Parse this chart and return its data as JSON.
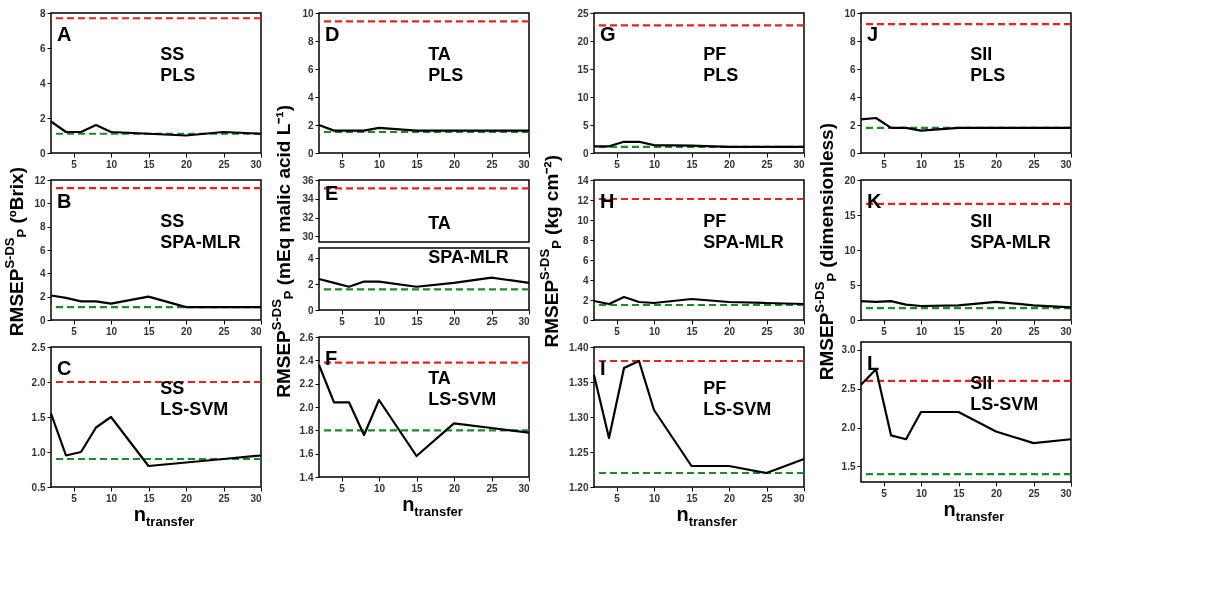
{
  "chart_data": [
    {
      "type": "line",
      "annotations": [
        "A",
        "SS",
        "PLS"
      ],
      "x": [
        2,
        4,
        6,
        8,
        10,
        15,
        20,
        25,
        30
      ],
      "series": [
        {
          "color": "#000000",
          "values": [
            1.8,
            1.2,
            1.2,
            1.6,
            1.2,
            1.1,
            1.0,
            1.2,
            1.1
          ]
        }
      ],
      "xlim": [
        2,
        30
      ],
      "xticks": [
        5,
        10,
        15,
        20,
        25,
        30
      ],
      "ylim": [
        0,
        8
      ],
      "yticks": [
        0,
        2,
        4,
        6,
        8
      ],
      "line_style": "solid",
      "ref_lines": [
        {
          "axis": "y",
          "value": 7.7,
          "color": "#e8231e",
          "line_style": "dashed"
        },
        {
          "axis": "y",
          "value": 1.1,
          "color": "#1a8a2a",
          "line_style": "dashed"
        }
      ]
    },
    {
      "type": "line",
      "annotations": [
        "B",
        "SS",
        "SPA-MLR"
      ],
      "ylabel": "RMSEP$^{S-DS}$$_{P}$ (ºBrix)",
      "x": [
        2,
        4,
        6,
        8,
        10,
        15,
        20,
        25,
        30
      ],
      "series": [
        {
          "color": "#000000",
          "values": [
            2.1,
            1.9,
            1.6,
            1.6,
            1.4,
            2.0,
            1.1,
            1.1,
            1.1
          ]
        }
      ],
      "xlim": [
        2,
        30
      ],
      "xticks": [
        5,
        10,
        15,
        20,
        25,
        30
      ],
      "ylim": [
        0,
        12
      ],
      "yticks": [
        0,
        2,
        4,
        6,
        8,
        10,
        12
      ],
      "line_style": "solid",
      "ref_lines": [
        {
          "axis": "y",
          "value": 11.3,
          "color": "#e8231e",
          "line_style": "dashed"
        },
        {
          "axis": "y",
          "value": 1.1,
          "color": "#1a8a2a",
          "line_style": "dashed"
        }
      ]
    },
    {
      "type": "line",
      "annotations": [
        "C",
        "SS",
        "LS-SVM"
      ],
      "xlabel": "n$_{transfer}$",
      "x": [
        2,
        4,
        6,
        8,
        10,
        15,
        20,
        25,
        30
      ],
      "series": [
        {
          "color": "#000000",
          "values": [
            1.55,
            0.95,
            1.0,
            1.35,
            1.5,
            0.8,
            0.85,
            0.9,
            0.95
          ]
        }
      ],
      "xlim": [
        2,
        30
      ],
      "xticks": [
        5,
        10,
        15,
        20,
        25,
        30
      ],
      "ylim": [
        0.5,
        2.5
      ],
      "yticks": [
        0.5,
        {
          "value": 1,
          "label": "1.0"
        },
        1.5,
        {
          "value": 2,
          "label": "2.0"
        },
        2.5
      ],
      "line_style": "solid",
      "ref_lines": [
        {
          "axis": "y",
          "value": 2.0,
          "color": "#e8231e",
          "line_style": "dashed"
        },
        {
          "axis": "y",
          "value": 0.9,
          "color": "#1a8a2a",
          "line_style": "dashed"
        }
      ]
    },
    {
      "type": "line",
      "annotations": [
        "D",
        "TA",
        "PLS"
      ],
      "x": [
        2,
        4,
        6,
        8,
        10,
        15,
        20,
        25,
        30
      ],
      "series": [
        {
          "color": "#000000",
          "values": [
            2.0,
            1.6,
            1.6,
            1.6,
            1.8,
            1.6,
            1.6,
            1.6,
            1.6
          ]
        }
      ],
      "xlim": [
        2,
        30
      ],
      "xticks": [
        5,
        10,
        15,
        20,
        25,
        30
      ],
      "ylim": [
        0,
        10
      ],
      "yticks": [
        0,
        2,
        4,
        6,
        8,
        10
      ],
      "line_style": "solid",
      "ref_lines": [
        {
          "axis": "y",
          "value": 9.4,
          "color": "#e8231e",
          "line_style": "dashed"
        },
        {
          "axis": "y",
          "value": 1.5,
          "color": "#1a8a2a",
          "line_style": "dashed"
        }
      ]
    },
    {
      "type": "line",
      "annotations": [
        "E",
        "TA"
      ],
      "xlim": [
        2,
        30
      ],
      "ylim": [
        29.4,
        36
      ],
      "yticks": [
        30,
        32,
        34,
        36
      ],
      "tick_labels": "y",
      "ref_lines": [
        {
          "axis": "y",
          "value": 35.1,
          "color": "#e8231e",
          "line_style": "dashed"
        }
      ]
    },
    {
      "type": "line",
      "annotations": [
        "SPA-MLR"
      ],
      "ylabel": "RMSEP$^{S-DS}$$_{P}$ (mEq malic acid L⁻¹)",
      "x": [
        2,
        4,
        6,
        8,
        10,
        15,
        20,
        25,
        30
      ],
      "series": [
        {
          "color": "#000000",
          "values": [
            2.4,
            2.1,
            1.8,
            2.2,
            2.2,
            1.8,
            2.1,
            2.5,
            2.1
          ]
        }
      ],
      "xlim": [
        2,
        30
      ],
      "xticks": [
        5,
        10,
        15,
        20,
        25,
        30
      ],
      "ylim": [
        0,
        4.8
      ],
      "yticks": [
        0,
        2,
        4
      ],
      "line_style": "solid",
      "ref_lines": [
        {
          "axis": "y",
          "value": 1.6,
          "color": "#1a8a2a",
          "line_style": "dashed"
        }
      ]
    },
    {
      "type": "line",
      "annotations": [
        "F",
        "TA",
        "LS-SVM"
      ],
      "xlabel": "n$_{transfer}$",
      "x": [
        2,
        4,
        6,
        8,
        10,
        15,
        20,
        25,
        30
      ],
      "series": [
        {
          "color": "#000000",
          "values": [
            2.36,
            2.04,
            2.04,
            1.76,
            2.06,
            1.58,
            1.86,
            1.82,
            1.78
          ]
        }
      ],
      "xlim": [
        2,
        30
      ],
      "xticks": [
        5,
        10,
        15,
        20,
        25,
        30
      ],
      "ylim": [
        1.4,
        2.6
      ],
      "yticks": [
        1.4,
        1.6,
        1.8,
        {
          "value": 2,
          "label": "2.0"
        },
        2.2,
        2.4,
        2.6
      ],
      "line_style": "solid",
      "ref_lines": [
        {
          "axis": "y",
          "value": 2.38,
          "color": "#e8231e",
          "line_style": "dashed"
        },
        {
          "axis": "y",
          "value": 1.8,
          "color": "#1a8a2a",
          "line_style": "dashed"
        }
      ]
    },
    {
      "type": "line",
      "annotations": [
        "G",
        "PF",
        "PLS"
      ],
      "x": [
        2,
        4,
        6,
        8,
        10,
        15,
        20,
        25,
        30
      ],
      "series": [
        {
          "color": "#000000",
          "values": [
            1.2,
            1.2,
            2.0,
            2.0,
            1.4,
            1.3,
            1.1,
            1.1,
            1.1
          ]
        }
      ],
      "xlim": [
        2,
        30
      ],
      "xticks": [
        5,
        10,
        15,
        20,
        25,
        30
      ],
      "ylim": [
        0,
        25
      ],
      "yticks": [
        0,
        5,
        10,
        15,
        20,
        25
      ],
      "line_style": "solid",
      "ref_lines": [
        {
          "axis": "y",
          "value": 22.8,
          "color": "#e8231e",
          "line_style": "dashed"
        },
        {
          "axis": "y",
          "value": 1.1,
          "color": "#1a8a2a",
          "line_style": "dashed"
        }
      ]
    },
    {
      "type": "line",
      "annotations": [
        "H",
        "PF",
        "SPA-MLR"
      ],
      "ylabel": "RMSEP$^{S-DS}$$_{P}$ (kg cm⁻²)",
      "x": [
        2,
        4,
        6,
        8,
        10,
        15,
        20,
        25,
        30
      ],
      "series": [
        {
          "color": "#000000",
          "values": [
            1.9,
            1.6,
            2.3,
            1.8,
            1.7,
            2.1,
            1.8,
            1.7,
            1.6
          ]
        }
      ],
      "xlim": [
        2,
        30
      ],
      "xticks": [
        5,
        10,
        15,
        20,
        25,
        30
      ],
      "ylim": [
        0,
        14
      ],
      "yticks": [
        0,
        2,
        4,
        6,
        8,
        10,
        12,
        14
      ],
      "line_style": "solid",
      "ref_lines": [
        {
          "axis": "y",
          "value": 12.1,
          "color": "#e8231e",
          "line_style": "dashed"
        },
        {
          "axis": "y",
          "value": 1.5,
          "color": "#1a8a2a",
          "line_style": "dashed"
        }
      ]
    },
    {
      "type": "line",
      "annotations": [
        "I",
        "PF",
        "LS-SVM"
      ],
      "xlabel": "n$_{transfer}$",
      "x": [
        2,
        4,
        6,
        8,
        10,
        15,
        20,
        25,
        30
      ],
      "series": [
        {
          "color": "#000000",
          "values": [
            1.36,
            1.27,
            1.37,
            1.38,
            1.31,
            1.23,
            1.23,
            1.22,
            1.24
          ]
        }
      ],
      "xlim": [
        2,
        30
      ],
      "xticks": [
        5,
        10,
        15,
        20,
        25,
        30
      ],
      "ylim": [
        1.2,
        1.4
      ],
      "yticks": [
        {
          "value": 1.2,
          "label": "1.20"
        },
        1.25,
        {
          "value": 1.3,
          "label": "1.30"
        },
        1.35,
        {
          "value": 1.4,
          "label": "1.40"
        }
      ],
      "line_style": "solid",
      "ref_lines": [
        {
          "axis": "y",
          "value": 1.38,
          "color": "#e8231e",
          "line_style": "dashed"
        },
        {
          "axis": "y",
          "value": 1.22,
          "color": "#1a8a2a",
          "line_style": "dashed"
        }
      ]
    },
    {
      "type": "line",
      "annotations": [
        "J",
        "SII",
        "PLS"
      ],
      "x": [
        2,
        4,
        6,
        8,
        10,
        15,
        20,
        25,
        30
      ],
      "series": [
        {
          "color": "#000000",
          "values": [
            2.4,
            2.5,
            1.8,
            1.8,
            1.6,
            1.8,
            1.8,
            1.8,
            1.8
          ]
        }
      ],
      "xlim": [
        2,
        30
      ],
      "xticks": [
        5,
        10,
        15,
        20,
        25,
        30
      ],
      "ylim": [
        0,
        10
      ],
      "yticks": [
        0,
        2,
        4,
        6,
        8,
        10
      ],
      "line_style": "solid",
      "ref_lines": [
        {
          "axis": "y",
          "value": 9.2,
          "color": "#e8231e",
          "line_style": "dashed"
        },
        {
          "axis": "y",
          "value": 1.8,
          "color": "#1a8a2a",
          "line_style": "dashed"
        }
      ]
    },
    {
      "type": "line",
      "annotations": [
        "K",
        "SII",
        "SPA-MLR"
      ],
      "ylabel": "RMSEP$^{S-DS}$$_{P}$ (dimensionless)",
      "x": [
        2,
        4,
        6,
        8,
        10,
        15,
        20,
        25,
        30
      ],
      "series": [
        {
          "color": "#000000",
          "values": [
            2.7,
            2.6,
            2.7,
            2.2,
            2.0,
            2.1,
            2.6,
            2.1,
            1.8
          ]
        }
      ],
      "xlim": [
        2,
        30
      ],
      "xticks": [
        5,
        10,
        15,
        20,
        25,
        30
      ],
      "ylim": [
        0,
        20
      ],
      "yticks": [
        0,
        5,
        10,
        15,
        20
      ],
      "line_style": "solid",
      "ref_lines": [
        {
          "axis": "y",
          "value": 16.6,
          "color": "#e8231e",
          "line_style": "dashed"
        },
        {
          "axis": "y",
          "value": 1.7,
          "color": "#1a8a2a",
          "line_style": "dashed"
        }
      ]
    },
    {
      "type": "line",
      "annotations": [
        "L",
        "SII",
        "LS-SVM"
      ],
      "xlabel": "n$_{transfer}$",
      "x": [
        2,
        4,
        6,
        8,
        10,
        15,
        20,
        25,
        30
      ],
      "series": [
        {
          "color": "#000000",
          "values": [
            2.55,
            2.75,
            1.9,
            1.85,
            2.2,
            2.2,
            1.95,
            1.8,
            1.85
          ]
        }
      ],
      "xlim": [
        2,
        30
      ],
      "xticks": [
        5,
        10,
        15,
        20,
        25,
        30
      ],
      "ylim": [
        1.3,
        3.1
      ],
      "yticks": [
        1.5,
        {
          "value": 2,
          "label": "2.0"
        },
        2.5,
        {
          "value": 3,
          "label": "3.0"
        }
      ],
      "line_style": "solid",
      "ref_lines": [
        {
          "axis": "y",
          "value": 2.6,
          "color": "#e8231e",
          "line_style": "dashed"
        },
        {
          "axis": "y",
          "value": 1.4,
          "color": "#1a8a2a",
          "line_style": "dashed"
        }
      ]
    }
  ]
}
